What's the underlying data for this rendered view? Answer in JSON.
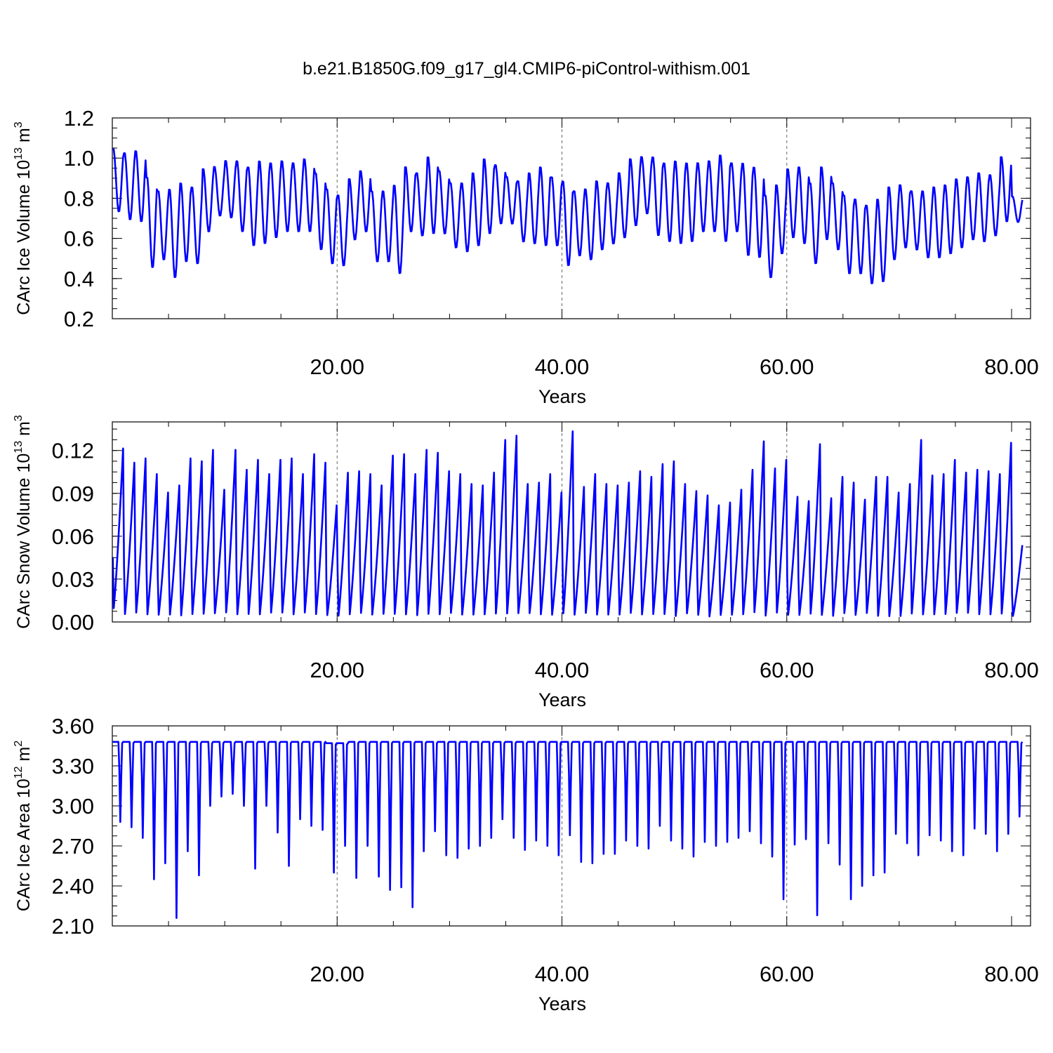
{
  "figure": {
    "title": "b.e21.B1850G.f09_g17_gl4.CMIP6-piControl-withism.001"
  },
  "colors": {
    "line": "#0000ff",
    "axis": "#000000",
    "grid": "#666666"
  },
  "chart_data": [
    {
      "type": "line",
      "ylabel_main": "CArc Ice Volume 10",
      "ylabel_exp": "13",
      "ylabel_unit": " m",
      "ylabel_unit_exp": "3",
      "xlabel": "Years",
      "xlim": [
        0,
        82
      ],
      "ylim": [
        0.2,
        1.2
      ],
      "xticks": [
        20,
        40,
        60,
        80
      ],
      "xtick_labels": [
        "20.00",
        "40.00",
        "60.00",
        "80.00"
      ],
      "yticks": [
        0.2,
        0.4,
        0.6,
        0.8,
        1.0,
        1.2
      ],
      "ytick_labels": [
        "0.2",
        "0.4",
        "0.6",
        "0.8",
        "1.0",
        "1.2"
      ],
      "grid_x": [
        20,
        40,
        60
      ],
      "series": [
        {
          "x_start": 0.042,
          "x_step": 0.08333,
          "peaks": [
            1.05,
            1.03,
            1.04,
            0.91,
            0.84,
            0.85,
            0.88,
            0.86,
            0.95,
            0.96,
            0.99,
            0.99,
            0.96,
            0.99,
            0.98,
            0.99,
            0.98,
            1.0,
            0.93,
            0.85,
            0.82,
            0.9,
            0.94,
            0.84,
            0.84,
            0.87,
            0.96,
            0.93,
            1.01,
            0.94,
            0.88,
            0.88,
            0.93,
            1.0,
            0.97,
            0.91,
            0.89,
            0.93,
            0.96,
            0.91,
            0.89,
            0.84,
            0.85,
            0.89,
            0.88,
            0.93,
            1.0,
            1.01,
            1.01,
            0.98,
            0.99,
            0.98,
            0.98,
            0.99,
            1.02,
            0.98,
            0.98,
            0.96,
            0.82,
            0.87,
            0.95,
            0.96,
            0.88,
            0.96,
            0.88,
            0.82,
            0.8,
            0.77,
            0.8,
            0.86,
            0.87,
            0.84,
            0.84,
            0.86,
            0.87,
            0.9,
            0.91,
            0.93,
            0.92,
            1.01,
            0.81
          ],
          "troughs": [
            0.73,
            0.69,
            0.68,
            0.45,
            0.49,
            0.4,
            0.48,
            0.47,
            0.63,
            0.71,
            0.7,
            0.63,
            0.56,
            0.57,
            0.6,
            0.63,
            0.63,
            0.63,
            0.54,
            0.47,
            0.46,
            0.59,
            0.63,
            0.48,
            0.48,
            0.42,
            0.63,
            0.61,
            0.62,
            0.62,
            0.55,
            0.53,
            0.56,
            0.62,
            0.67,
            0.67,
            0.58,
            0.57,
            0.56,
            0.56,
            0.46,
            0.51,
            0.49,
            0.54,
            0.57,
            0.6,
            0.66,
            0.72,
            0.61,
            0.58,
            0.57,
            0.58,
            0.63,
            0.63,
            0.58,
            0.63,
            0.51,
            0.5,
            0.4,
            0.52,
            0.6,
            0.57,
            0.47,
            0.59,
            0.54,
            0.42,
            0.42,
            0.37,
            0.38,
            0.49,
            0.55,
            0.54,
            0.5,
            0.5,
            0.52,
            0.55,
            0.59,
            0.58,
            0.61,
            0.68,
            0.68
          ]
        }
      ]
    },
    {
      "type": "line",
      "ylabel_main": "CArc Snow Volume 10",
      "ylabel_exp": "13",
      "ylabel_unit": " m",
      "ylabel_unit_exp": "3",
      "xlabel": "Years",
      "xlim": [
        0,
        82
      ],
      "ylim": [
        0.0,
        0.14
      ],
      "xticks": [
        20,
        40,
        60,
        80
      ],
      "xtick_labels": [
        "20.00",
        "40.00",
        "60.00",
        "80.00"
      ],
      "yticks": [
        0.0,
        0.03,
        0.06,
        0.09,
        0.12
      ],
      "ytick_labels": [
        "0.00",
        "0.03",
        "0.06",
        "0.09",
        "0.12"
      ],
      "grid_x": [
        20,
        40,
        60
      ],
      "series": [
        {
          "x_start": 0.042,
          "x_step": 0.08333,
          "peaks": [
            0.122,
            0.112,
            0.115,
            0.104,
            0.091,
            0.096,
            0.115,
            0.113,
            0.121,
            0.093,
            0.121,
            0.107,
            0.114,
            0.104,
            0.114,
            0.115,
            0.104,
            0.118,
            0.112,
            0.082,
            0.105,
            0.106,
            0.104,
            0.096,
            0.117,
            0.118,
            0.104,
            0.121,
            0.119,
            0.106,
            0.104,
            0.097,
            0.096,
            0.105,
            0.128,
            0.131,
            0.097,
            0.098,
            0.104,
            0.091,
            0.134,
            0.095,
            0.104,
            0.097,
            0.096,
            0.098,
            0.106,
            0.102,
            0.111,
            0.113,
            0.097,
            0.092,
            0.089,
            0.082,
            0.084,
            0.093,
            0.107,
            0.127,
            0.108,
            0.114,
            0.088,
            0.085,
            0.125,
            0.087,
            0.102,
            0.098,
            0.086,
            0.102,
            0.102,
            0.091,
            0.097,
            0.128,
            0.103,
            0.104,
            0.114,
            0.105,
            0.107,
            0.106,
            0.104,
            0.126,
            0.054
          ],
          "troughs": [
            0.007,
            0.003,
            0.004,
            0.003,
            0.003,
            0.003,
            0.002,
            0.003,
            0.003,
            0.004,
            0.004,
            0.003,
            0.003,
            0.003,
            0.004,
            0.004,
            0.003,
            0.004,
            0.003,
            0.003,
            0.002,
            0.003,
            0.004,
            0.003,
            0.003,
            0.003,
            0.003,
            0.002,
            0.003,
            0.003,
            0.004,
            0.003,
            0.003,
            0.003,
            0.003,
            0.003,
            0.004,
            0.004,
            0.003,
            0.003,
            0.003,
            0.003,
            0.004,
            0.003,
            0.003,
            0.003,
            0.004,
            0.003,
            0.003,
            0.003,
            0.002,
            0.004,
            0.003,
            0.002,
            0.003,
            0.003,
            0.003,
            0.004,
            0.002,
            0.004,
            0.003,
            0.003,
            0.003,
            0.003,
            0.002,
            0.004,
            0.003,
            0.004,
            0.002,
            0.002,
            0.002,
            0.003,
            0.003,
            0.003,
            0.003,
            0.004,
            0.004,
            0.003,
            0.003,
            0.003,
            0.003
          ]
        }
      ]
    },
    {
      "type": "line",
      "ylabel_main": "CArc Ice Area 10",
      "ylabel_exp": "12",
      "ylabel_unit": " m",
      "ylabel_unit_exp": "2",
      "xlabel": "Years",
      "xlim": [
        0,
        82
      ],
      "ylim": [
        2.1,
        3.6
      ],
      "xticks": [
        20,
        40,
        60,
        80
      ],
      "xtick_labels": [
        "20.00",
        "40.00",
        "60.00",
        "80.00"
      ],
      "yticks": [
        2.1,
        2.4,
        2.7,
        3.0,
        3.3,
        3.6
      ],
      "ytick_labels": [
        "2.10",
        "2.40",
        "2.70",
        "3.00",
        "3.30",
        "3.60"
      ],
      "grid_x": [
        20,
        40,
        60
      ],
      "series": [
        {
          "x_start": 0.042,
          "x_step": 0.08333,
          "plateau": [
            3.48,
            3.48,
            3.48,
            3.48,
            3.48,
            3.48,
            3.48,
            3.48,
            3.48,
            3.48,
            3.48,
            3.48,
            3.48,
            3.48,
            3.48,
            3.48,
            3.48,
            3.48,
            3.48,
            3.47,
            3.47,
            3.48,
            3.48,
            3.48,
            3.48,
            3.48,
            3.48,
            3.48,
            3.48,
            3.48,
            3.48,
            3.48,
            3.48,
            3.48,
            3.48,
            3.48,
            3.48,
            3.48,
            3.48,
            3.48,
            3.48,
            3.48,
            3.48,
            3.48,
            3.48,
            3.48,
            3.48,
            3.48,
            3.48,
            3.48,
            3.48,
            3.48,
            3.48,
            3.48,
            3.48,
            3.48,
            3.48,
            3.48,
            3.48,
            3.48,
            3.48,
            3.48,
            3.48,
            3.48,
            3.48,
            3.48,
            3.48,
            3.48,
            3.48,
            3.48,
            3.48,
            3.48,
            3.48,
            3.48,
            3.48,
            3.48,
            3.48,
            3.48,
            3.48,
            3.48
          ],
          "minima": [
            2.88,
            2.84,
            2.76,
            2.45,
            2.57,
            2.16,
            2.66,
            2.48,
            3.0,
            3.07,
            3.09,
            3.0,
            2.53,
            3.0,
            2.8,
            2.55,
            2.9,
            2.85,
            2.82,
            2.5,
            2.7,
            2.46,
            2.7,
            2.47,
            2.37,
            2.39,
            2.24,
            2.66,
            2.81,
            2.63,
            2.61,
            2.68,
            2.7,
            2.76,
            2.9,
            2.76,
            2.67,
            2.74,
            2.7,
            2.63,
            2.78,
            2.58,
            2.57,
            2.64,
            2.64,
            2.74,
            2.7,
            2.68,
            2.85,
            2.74,
            2.68,
            2.62,
            2.73,
            2.7,
            2.73,
            2.76,
            2.81,
            2.72,
            2.62,
            2.3,
            2.71,
            2.75,
            2.18,
            2.72,
            2.56,
            2.3,
            2.4,
            2.48,
            2.5,
            2.79,
            2.72,
            2.63,
            2.78,
            2.74,
            2.66,
            2.63,
            2.83,
            2.79,
            2.66,
            2.79,
            2.92
          ]
        }
      ]
    }
  ]
}
